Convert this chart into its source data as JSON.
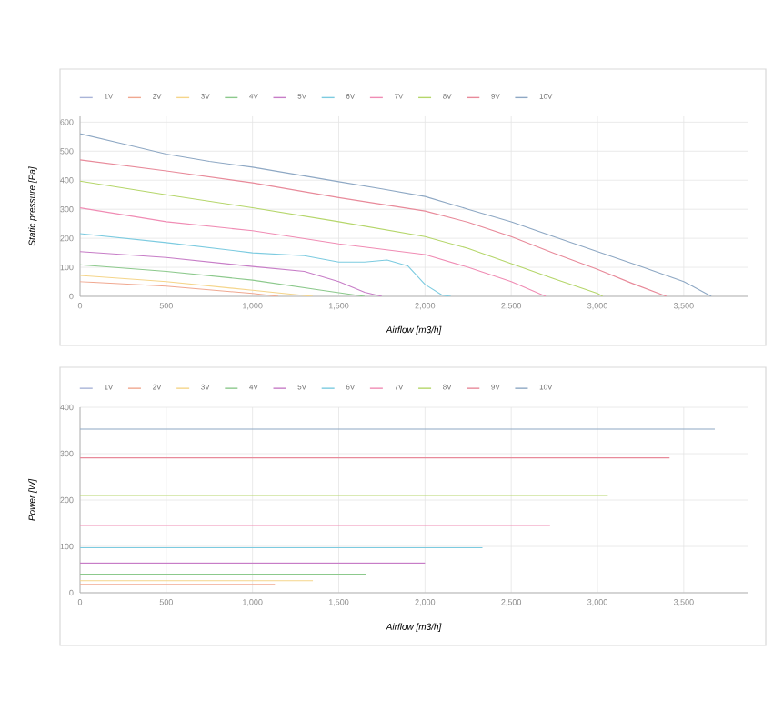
{
  "chart_data": [
    {
      "type": "line",
      "xlabel": "Airflow [m3/h]",
      "ylabel": "Static pressure [Pa]",
      "xlim": [
        0,
        3870
      ],
      "ylim": [
        0,
        620
      ],
      "xticks": [
        0,
        500,
        {
          "value": 1000,
          "label": "1,000"
        },
        {
          "value": 1500,
          "label": "1,500"
        },
        {
          "value": 2000,
          "label": "2,000"
        },
        {
          "value": 2500,
          "label": "2,500"
        },
        {
          "value": 3000,
          "label": "3,000"
        },
        {
          "value": 3500,
          "label": "3,500"
        }
      ],
      "yticks": [
        0,
        100,
        200,
        300,
        400,
        500,
        600
      ],
      "grid": true,
      "legend": "top left",
      "marker": "none",
      "line_style": "solid",
      "series": [
        {
          "name": "1V",
          "color": "#a9b4d8"
        },
        {
          "name": "2V",
          "color": "#f0a890",
          "x": [
            0,
            500,
            1000,
            1150
          ],
          "values": [
            51,
            35,
            10,
            0
          ]
        },
        {
          "name": "3V",
          "color": "#f5d58a",
          "x": [
            0,
            500,
            1000,
            1350
          ],
          "values": [
            72,
            51,
            21,
            0
          ]
        },
        {
          "name": "4V",
          "color": "#8cc98c",
          "x": [
            0,
            500,
            1000,
            1400,
            1650
          ],
          "values": [
            109,
            86,
            56,
            21,
            0
          ]
        },
        {
          "name": "5V",
          "color": "#c77dc7",
          "x": [
            0,
            500,
            1000,
            1300,
            1500,
            1650,
            1750
          ],
          "values": [
            154,
            134,
            103,
            86,
            51,
            14,
            0
          ]
        },
        {
          "name": "6V",
          "color": "#7ccbe0",
          "x": [
            0,
            500,
            1000,
            1300,
            1500,
            1650,
            1780,
            1900,
            2000,
            2100,
            2150
          ],
          "values": [
            216,
            185,
            150,
            140,
            118,
            118,
            125,
            105,
            41,
            4,
            0
          ]
        },
        {
          "name": "7V",
          "color": "#f08cb4",
          "x": [
            0,
            500,
            1000,
            1500,
            2000,
            2250,
            2500,
            2700
          ],
          "values": [
            305,
            257,
            226,
            181,
            144,
            100,
            51,
            0
          ]
        },
        {
          "name": "8V",
          "color": "#b5d66a",
          "x": [
            0,
            500,
            1000,
            1500,
            2000,
            2250,
            2500,
            2750,
            3000,
            3030
          ],
          "values": [
            397,
            350,
            305,
            257,
            206,
            165,
            113,
            60,
            10,
            0
          ]
        },
        {
          "name": "9V",
          "color": "#e88a9a",
          "x": [
            0,
            500,
            1000,
            1500,
            2000,
            2250,
            2500,
            2750,
            3000,
            3200,
            3400
          ],
          "values": [
            470,
            432,
            391,
            340,
            294,
            255,
            206,
            148,
            93,
            45,
            0
          ]
        },
        {
          "name": "10V",
          "color": "#8ea8c4",
          "x": [
            0,
            250,
            500,
            750,
            1000,
            1250,
            1500,
            1750,
            2000,
            2250,
            2500,
            2750,
            3000,
            3250,
            3500,
            3660
          ],
          "values": [
            560,
            525,
            490,
            465,
            445,
            420,
            395,
            370,
            344,
            300,
            257,
            205,
            154,
            103,
            51,
            0
          ]
        }
      ]
    },
    {
      "type": "line",
      "xlabel": "Airflow [m3/h]",
      "ylabel": "Power [W]",
      "xlim": [
        0,
        3870
      ],
      "ylim": [
        0,
        400
      ],
      "xticks": [
        0,
        500,
        {
          "value": 1000,
          "label": "1,000"
        },
        {
          "value": 1500,
          "label": "1,500"
        },
        {
          "value": 2000,
          "label": "2,000"
        },
        {
          "value": 2500,
          "label": "2,500"
        },
        {
          "value": 3000,
          "label": "3,000"
        },
        {
          "value": 3500,
          "label": "3,500"
        }
      ],
      "yticks": [
        0,
        100,
        200,
        300,
        400
      ],
      "grid": true,
      "legend": "top left",
      "marker": "none",
      "line_style": "solid",
      "series": [
        {
          "name": "1V",
          "color": "#a9b4d8"
        },
        {
          "name": "2V",
          "color": "#f0a890",
          "x": [
            0,
            1130
          ],
          "values": [
            18,
            18
          ]
        },
        {
          "name": "3V",
          "color": "#f5d58a",
          "x": [
            0,
            1350
          ],
          "values": [
            26,
            26
          ]
        },
        {
          "name": "4V",
          "color": "#8cc98c",
          "x": [
            0,
            1660
          ],
          "values": [
            40,
            40
          ]
        },
        {
          "name": "5V",
          "color": "#c77dc7",
          "x": [
            0,
            2000
          ],
          "values": [
            64,
            64
          ]
        },
        {
          "name": "6V",
          "color": "#7ccbe0",
          "x": [
            0,
            2333
          ],
          "values": [
            97,
            97
          ]
        },
        {
          "name": "7V",
          "color": "#f08cb4",
          "x": [
            0,
            2725
          ],
          "values": [
            145,
            145
          ]
        },
        {
          "name": "8V",
          "color": "#b5d66a",
          "x": [
            0,
            3060
          ],
          "values": [
            210,
            210
          ]
        },
        {
          "name": "9V",
          "color": "#e88a9a",
          "x": [
            0,
            3418
          ],
          "values": [
            291,
            291
          ]
        },
        {
          "name": "10V",
          "color": "#8ea8c4",
          "x": [
            0,
            3680
          ],
          "values": [
            353,
            353
          ]
        }
      ]
    }
  ]
}
